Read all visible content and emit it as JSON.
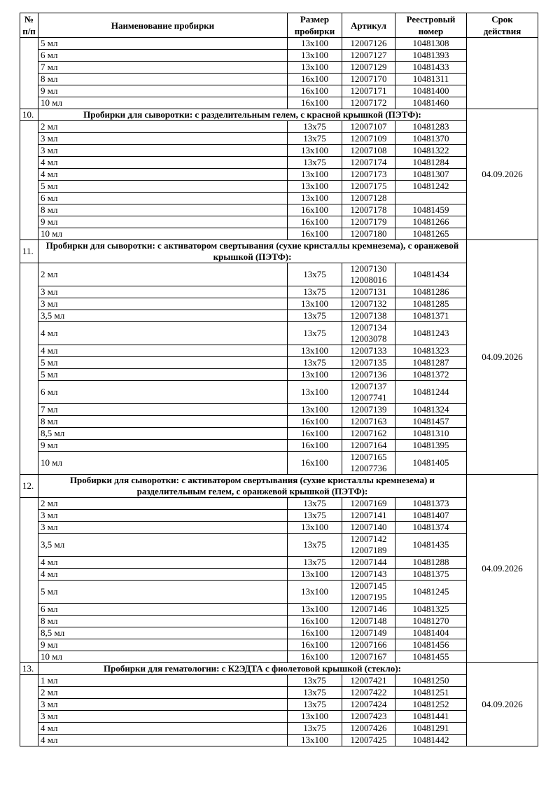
{
  "header": {
    "num": [
      "№",
      "п/п"
    ],
    "name": "Наименование пробирки",
    "size": [
      "Размер",
      "пробирки"
    ],
    "article": "Артикул",
    "registry": [
      "Реестровый",
      "номер"
    ],
    "validity": [
      "Срок",
      "действия"
    ]
  },
  "sections": [
    {
      "rows": [
        [
          "5 мл",
          "13x100",
          [
            "12007126"
          ],
          "10481308"
        ],
        [
          "6 мл",
          "13x100",
          [
            "12007127"
          ],
          "10481393"
        ],
        [
          "7 мл",
          "13x100",
          [
            "12007129"
          ],
          "10481433"
        ],
        [
          "8 мл",
          "16x100",
          [
            "12007170"
          ],
          "10481311"
        ],
        [
          "9 мл",
          "16x100",
          [
            "12007171"
          ],
          "10481400"
        ],
        [
          "10 мл",
          "16x100",
          [
            "12007172"
          ],
          "10481460"
        ]
      ]
    },
    {
      "number": "10.",
      "title": "Пробирки для сыворотки: с разделительным гелем, с красной крышкой (ПЭТФ):",
      "date": "04.09.2026",
      "rows": [
        [
          "2 мл",
          "13x75",
          [
            "12007107"
          ],
          "10481283"
        ],
        [
          "3 мл",
          "13x75",
          [
            "12007109"
          ],
          "10481370"
        ],
        [
          "3 мл",
          "13x100",
          [
            "12007108"
          ],
          "10481322"
        ],
        [
          "4 мл",
          "13x75",
          [
            "12007174"
          ],
          "10481284"
        ],
        [
          "4 мл",
          "13x100",
          [
            "12007173"
          ],
          "10481307"
        ],
        [
          "5 мл",
          "13x100",
          [
            "12007175"
          ],
          "10481242"
        ],
        [
          "6 мл",
          "13x100",
          [
            "12007128"
          ]
        ],
        [
          "8 мл",
          "16x100",
          [
            "12007178"
          ],
          "10481459"
        ],
        [
          "9 мл",
          "16x100",
          [
            "12007179"
          ],
          "10481266"
        ],
        [
          "10 мл",
          "16x100",
          [
            "12007180"
          ],
          "10481265"
        ]
      ]
    },
    {
      "number": "11.",
      "title": "Пробирки для сыворотки: с активатором свертывания (сухие кристаллы кремнезема), с оранжевой крышкой (ПЭТФ):",
      "date": "04.09.2026",
      "rows": [
        [
          "2 мл",
          "13x75",
          [
            "12007130",
            "12008016"
          ],
          "10481434"
        ],
        [
          "3 мл",
          "13x75",
          [
            "12007131"
          ],
          "10481286"
        ],
        [
          "3 мл",
          "13x100",
          [
            "12007132"
          ],
          "10481285"
        ],
        [
          "3,5 мл",
          "13x75",
          [
            "12007138"
          ],
          "10481371"
        ],
        [
          "4 мл",
          "13x75",
          [
            "12007134",
            "12003078"
          ],
          "10481243"
        ],
        [
          "4 мл",
          "13x100",
          [
            "12007133"
          ],
          "10481323"
        ],
        [
          "5 мл",
          "13x75",
          [
            "12007135"
          ],
          "10481287"
        ],
        [
          "5 мл",
          "13x100",
          [
            "12007136"
          ],
          "10481372"
        ],
        [
          "6 мл",
          "13x100",
          [
            "12007137",
            "12007741"
          ],
          "10481244"
        ],
        [
          "7 мл",
          "13x100",
          [
            "12007139"
          ],
          "10481324"
        ],
        [
          "8 мл",
          "16x100",
          [
            "12007163"
          ],
          "10481457"
        ],
        [
          "8,5 мл",
          "16x100",
          [
            "12007162"
          ],
          "10481310"
        ],
        [
          "9 мл",
          "16x100",
          [
            "12007164"
          ],
          "10481395"
        ],
        [
          "10 мл",
          "16x100",
          [
            "12007165",
            "12007736"
          ],
          "10481405"
        ]
      ]
    },
    {
      "number": "12.",
      "title": "Пробирки для сыворотки: с активатором свертывания (сухие кристаллы кремнезема) и разделительным гелем, с оранжевой крышкой (ПЭТФ):",
      "date": "04.09.2026",
      "rows": [
        [
          "2 мл",
          "13x75",
          [
            "12007169"
          ],
          "10481373"
        ],
        [
          "3 мл",
          "13x75",
          [
            "12007141"
          ],
          "10481407"
        ],
        [
          "3 мл",
          "13x100",
          [
            "12007140"
          ],
          "10481374"
        ],
        [
          "3,5 мл",
          "13x75",
          [
            "12007142",
            "12007189"
          ],
          "10481435"
        ],
        [
          "4 мл",
          "13x75",
          [
            "12007144"
          ],
          "10481288"
        ],
        [
          "4 мл",
          "13x100",
          [
            "12007143"
          ],
          "10481375"
        ],
        [
          "5 мл",
          "13x100",
          [
            "12007145",
            "12007195"
          ],
          "10481245"
        ],
        [
          "6 мл",
          "13x100",
          [
            "12007146"
          ],
          "10481325"
        ],
        [
          "8 мл",
          "16x100",
          [
            "12007148"
          ],
          "10481270"
        ],
        [
          "8,5 мл",
          "16x100",
          [
            "12007149"
          ],
          "10481404"
        ],
        [
          "9 мл",
          "16x100",
          [
            "12007166"
          ],
          "10481456"
        ],
        [
          "10 мл",
          "16x100",
          [
            "12007167"
          ],
          "10481455"
        ]
      ]
    },
    {
      "number": "13.",
      "title": "Пробирки для гематологии: с К2ЭДТА с фиолетовой крышкой (стекло):",
      "date": "04.09.2026",
      "rows": [
        [
          "1 мл",
          "13x75",
          [
            "12007421"
          ],
          "10481250"
        ],
        [
          "2 мл",
          "13x75",
          [
            "12007422"
          ],
          "10481251"
        ],
        [
          "3 мл",
          "13x75",
          [
            "12007424"
          ],
          "10481252"
        ],
        [
          "3 мл",
          "13x100",
          [
            "12007423"
          ],
          "10481441"
        ],
        [
          "4 мл",
          "13x75",
          [
            "12007426"
          ],
          "10481291"
        ],
        [
          "4 мл",
          "13x100",
          [
            "12007425"
          ],
          "10481442"
        ]
      ]
    }
  ]
}
